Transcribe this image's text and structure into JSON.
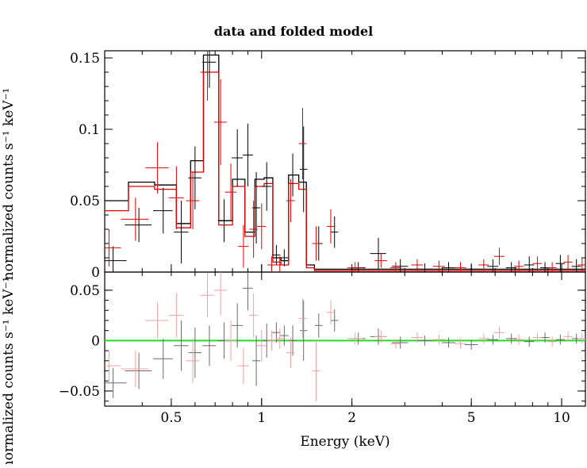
{
  "chart_data": [
    {
      "type": "scatter",
      "title": "data and folded model",
      "xlabel": "",
      "ylabel": "normalized counts s⁻¹ keV⁻¹",
      "x_scale": "log",
      "xlim": [
        0.3,
        12
      ],
      "ylim": [
        0,
        0.155
      ],
      "yticks": [
        "0",
        "0.05",
        "0.1",
        "0.15"
      ],
      "series": [
        {
          "color": "#000000",
          "points": [
            {
              "x": 0.32,
              "y": 0.008,
              "xe": 0.035,
              "ye": 0.01
            },
            {
              "x": 0.39,
              "y": 0.033,
              "xe": 0.04,
              "ye": 0.012
            },
            {
              "x": 0.47,
              "y": 0.043,
              "xe": 0.035,
              "ye": 0.016
            },
            {
              "x": 0.54,
              "y": 0.028,
              "xe": 0.03,
              "ye": 0.022
            },
            {
              "x": 0.6,
              "y": 0.066,
              "xe": 0.03,
              "ye": 0.022
            },
            {
              "x": 0.67,
              "y": 0.147,
              "xe": 0.035,
              "ye": 0.018
            },
            {
              "x": 0.75,
              "y": 0.036,
              "xe": 0.035,
              "ye": 0.015
            },
            {
              "x": 0.83,
              "y": 0.08,
              "xe": 0.035,
              "ye": 0.02
            },
            {
              "x": 0.9,
              "y": 0.082,
              "xe": 0.035,
              "ye": 0.022
            },
            {
              "x": 0.96,
              "y": 0.045,
              "xe": 0.03,
              "ye": 0.025
            },
            {
              "x": 1.04,
              "y": 0.06,
              "xe": 0.04,
              "ye": 0.017
            },
            {
              "x": 1.12,
              "y": 0.012,
              "xe": 0.035,
              "ye": 0.007
            },
            {
              "x": 1.19,
              "y": 0.01,
              "xe": 0.04,
              "ye": 0.006
            },
            {
              "x": 1.27,
              "y": 0.068,
              "xe": 0.04,
              "ye": 0.015
            },
            {
              "x": 1.38,
              "y": 0.072,
              "xe": 0.04,
              "ye": 0.03
            },
            {
              "x": 1.55,
              "y": 0.02,
              "xe": 0.045,
              "ye": 0.012
            },
            {
              "x": 1.75,
              "y": 0.028,
              "xe": 0.05,
              "ye": 0.011
            },
            {
              "x": 2.1,
              "y": 0.003,
              "xe": 0.12,
              "ye": 0.004
            },
            {
              "x": 2.45,
              "y": 0.013,
              "xe": 0.15,
              "ye": 0.011
            },
            {
              "x": 2.9,
              "y": 0.004,
              "xe": 0.18,
              "ye": 0.005
            },
            {
              "x": 3.5,
              "y": 0.002,
              "xe": 0.2,
              "ye": 0.004
            },
            {
              "x": 4.2,
              "y": 0.003,
              "xe": 0.22,
              "ye": 0.004
            },
            {
              "x": 5.0,
              "y": 0.002,
              "xe": 0.25,
              "ye": 0.004
            },
            {
              "x": 5.9,
              "y": 0.004,
              "xe": 0.25,
              "ye": 0.005
            },
            {
              "x": 6.8,
              "y": 0.003,
              "xe": 0.28,
              "ye": 0.004
            },
            {
              "x": 7.8,
              "y": 0.005,
              "xe": 0.3,
              "ye": 0.006
            },
            {
              "x": 8.8,
              "y": 0.003,
              "xe": 0.32,
              "ye": 0.004
            },
            {
              "x": 9.9,
              "y": 0.006,
              "xe": 0.35,
              "ye": 0.006
            },
            {
              "x": 11.2,
              "y": 0.004,
              "xe": 0.4,
              "ye": 0.005
            }
          ],
          "model": [
            [
              0.3,
              0.05
            ],
            [
              0.36,
              0.063
            ],
            [
              0.44,
              0.061
            ],
            [
              0.52,
              0.034
            ],
            [
              0.58,
              0.078
            ],
            [
              0.64,
              0.152
            ],
            [
              0.72,
              0.036
            ],
            [
              0.8,
              0.065
            ],
            [
              0.88,
              0.028
            ],
            [
              0.95,
              0.065
            ],
            [
              1.02,
              0.066
            ],
            [
              1.09,
              0.01
            ],
            [
              1.16,
              0.008
            ],
            [
              1.23,
              0.068
            ],
            [
              1.33,
              0.063
            ],
            [
              1.41,
              0.005
            ],
            [
              1.5,
              0.002
            ],
            [
              12,
              0.002
            ]
          ]
        },
        {
          "color": "#e00000",
          "points": [
            {
              "x": 0.31,
              "y": 0.017,
              "xe": 0.03,
              "ye": 0.013
            },
            {
              "x": 0.38,
              "y": 0.037,
              "xe": 0.04,
              "ye": 0.015
            },
            {
              "x": 0.45,
              "y": 0.073,
              "xe": 0.04,
              "ye": 0.018
            },
            {
              "x": 0.52,
              "y": 0.052,
              "xe": 0.03,
              "ye": 0.022
            },
            {
              "x": 0.59,
              "y": 0.05,
              "xe": 0.03,
              "ye": 0.02
            },
            {
              "x": 0.66,
              "y": 0.14,
              "xe": 0.035,
              "ye": 0.02
            },
            {
              "x": 0.73,
              "y": 0.105,
              "xe": 0.035,
              "ye": 0.03
            },
            {
              "x": 0.79,
              "y": 0.056,
              "xe": 0.035,
              "ye": 0.02
            },
            {
              "x": 0.87,
              "y": 0.018,
              "xe": 0.035,
              "ye": 0.015
            },
            {
              "x": 0.94,
              "y": 0.03,
              "xe": 0.03,
              "ye": 0.02
            },
            {
              "x": 1.0,
              "y": 0.032,
              "xe": 0.035,
              "ye": 0.016
            },
            {
              "x": 1.08,
              "y": 0.005,
              "xe": 0.035,
              "ye": 0.006
            },
            {
              "x": 1.15,
              "y": 0.005,
              "xe": 0.035,
              "ye": 0.006
            },
            {
              "x": 1.25,
              "y": 0.05,
              "xe": 0.04,
              "ye": 0.015
            },
            {
              "x": 1.37,
              "y": 0.09,
              "xe": 0.04,
              "ye": 0.025
            },
            {
              "x": 1.52,
              "y": 0.02,
              "xe": 0.045,
              "ye": 0.012
            },
            {
              "x": 1.7,
              "y": 0.032,
              "xe": 0.05,
              "ye": 0.012
            },
            {
              "x": 2.05,
              "y": 0.003,
              "xe": 0.12,
              "ye": 0.004
            },
            {
              "x": 2.5,
              "y": 0.008,
              "xe": 0.12,
              "ye": 0.005
            },
            {
              "x": 2.8,
              "y": 0.003,
              "xe": 0.12,
              "ye": 0.004
            },
            {
              "x": 3.3,
              "y": 0.005,
              "xe": 0.15,
              "ye": 0.004
            },
            {
              "x": 3.9,
              "y": 0.004,
              "xe": 0.18,
              "ye": 0.004
            },
            {
              "x": 4.6,
              "y": 0.003,
              "xe": 0.2,
              "ye": 0.004
            },
            {
              "x": 5.5,
              "y": 0.005,
              "xe": 0.22,
              "ye": 0.004
            },
            {
              "x": 6.2,
              "y": 0.011,
              "xe": 0.25,
              "ye": 0.006
            },
            {
              "x": 7.2,
              "y": 0.004,
              "xe": 0.28,
              "ye": 0.004
            },
            {
              "x": 8.3,
              "y": 0.006,
              "xe": 0.3,
              "ye": 0.005
            },
            {
              "x": 9.3,
              "y": 0.003,
              "xe": 0.32,
              "ye": 0.004
            },
            {
              "x": 10.5,
              "y": 0.007,
              "xe": 0.35,
              "ye": 0.005
            },
            {
              "x": 11.7,
              "y": 0.005,
              "xe": 0.4,
              "ye": 0.005
            }
          ],
          "model": [
            [
              0.3,
              0.043
            ],
            [
              0.36,
              0.06
            ],
            [
              0.44,
              0.058
            ],
            [
              0.52,
              0.031
            ],
            [
              0.58,
              0.07
            ],
            [
              0.64,
              0.14
            ],
            [
              0.72,
              0.033
            ],
            [
              0.8,
              0.06
            ],
            [
              0.88,
              0.025
            ],
            [
              0.95,
              0.06
            ],
            [
              1.02,
              0.062
            ],
            [
              1.09,
              0.007
            ],
            [
              1.16,
              0.005
            ],
            [
              1.23,
              0.062
            ],
            [
              1.33,
              0.058
            ],
            [
              1.41,
              0.003
            ],
            [
              1.5,
              0.001
            ],
            [
              12,
              0.001
            ]
          ]
        }
      ]
    },
    {
      "type": "scatter",
      "title": "",
      "xlabel": "Energy (keV)",
      "ylabel": "normalized counts s⁻¹ keV⁻¹",
      "x_scale": "log",
      "xlim": [
        0.3,
        12
      ],
      "ylim": [
        -0.065,
        0.068
      ],
      "xticks": [
        "0.5",
        "1",
        "2",
        "5",
        "10"
      ],
      "yticks": [
        "−0.05",
        "0",
        "0.05"
      ],
      "zero_line_color": "#22dd22",
      "series": [
        {
          "color": "#6a6a6a",
          "points": [
            {
              "x": 0.32,
              "y": -0.042,
              "xe": 0.035,
              "ye": 0.015
            },
            {
              "x": 0.39,
              "y": -0.03,
              "xe": 0.04,
              "ye": 0.018
            },
            {
              "x": 0.47,
              "y": -0.018,
              "xe": 0.035,
              "ye": 0.02
            },
            {
              "x": 0.54,
              "y": -0.005,
              "xe": 0.03,
              "ye": 0.025
            },
            {
              "x": 0.6,
              "y": -0.012,
              "xe": 0.03,
              "ye": 0.025
            },
            {
              "x": 0.67,
              "y": -0.005,
              "xe": 0.035,
              "ye": 0.02
            },
            {
              "x": 0.75,
              "y": 0.0,
              "xe": 0.035,
              "ye": 0.018
            },
            {
              "x": 0.83,
              "y": 0.015,
              "xe": 0.035,
              "ye": 0.022
            },
            {
              "x": 0.9,
              "y": 0.052,
              "xe": 0.035,
              "ye": 0.022
            },
            {
              "x": 0.96,
              "y": -0.02,
              "xe": 0.03,
              "ye": 0.025
            },
            {
              "x": 1.04,
              "y": 0.0,
              "xe": 0.04,
              "ye": 0.017
            },
            {
              "x": 1.12,
              "y": 0.008,
              "xe": 0.035,
              "ye": 0.01
            },
            {
              "x": 1.19,
              "y": 0.005,
              "xe": 0.04,
              "ye": 0.01
            },
            {
              "x": 1.27,
              "y": 0.0,
              "xe": 0.04,
              "ye": 0.015
            },
            {
              "x": 1.38,
              "y": 0.01,
              "xe": 0.04,
              "ye": 0.03
            },
            {
              "x": 1.55,
              "y": 0.015,
              "xe": 0.045,
              "ye": 0.012
            },
            {
              "x": 1.75,
              "y": 0.02,
              "xe": 0.05,
              "ye": 0.011
            },
            {
              "x": 2.1,
              "y": 0.002,
              "xe": 0.12,
              "ye": 0.006
            },
            {
              "x": 2.45,
              "y": 0.004,
              "xe": 0.15,
              "ye": 0.008
            },
            {
              "x": 2.9,
              "y": -0.002,
              "xe": 0.18,
              "ye": 0.006
            },
            {
              "x": 3.5,
              "y": 0.0,
              "xe": 0.2,
              "ye": 0.005
            },
            {
              "x": 4.2,
              "y": -0.002,
              "xe": 0.22,
              "ye": 0.005
            },
            {
              "x": 5.0,
              "y": -0.004,
              "xe": 0.25,
              "ye": 0.005
            },
            {
              "x": 5.9,
              "y": 0.001,
              "xe": 0.25,
              "ye": 0.005
            },
            {
              "x": 6.8,
              "y": 0.002,
              "xe": 0.28,
              "ye": 0.005
            },
            {
              "x": 7.8,
              "y": -0.001,
              "xe": 0.3,
              "ye": 0.005
            },
            {
              "x": 8.8,
              "y": 0.003,
              "xe": 0.32,
              "ye": 0.005
            },
            {
              "x": 9.9,
              "y": 0.001,
              "xe": 0.35,
              "ye": 0.005
            },
            {
              "x": 11.2,
              "y": 0.002,
              "xe": 0.4,
              "ye": 0.005
            }
          ]
        },
        {
          "color": "#f0a0a0",
          "points": [
            {
              "x": 0.31,
              "y": -0.025,
              "xe": 0.03,
              "ye": 0.015
            },
            {
              "x": 0.38,
              "y": -0.028,
              "xe": 0.04,
              "ye": 0.018
            },
            {
              "x": 0.45,
              "y": 0.02,
              "xe": 0.04,
              "ye": 0.018
            },
            {
              "x": 0.52,
              "y": 0.025,
              "xe": 0.03,
              "ye": 0.022
            },
            {
              "x": 0.59,
              "y": -0.02,
              "xe": 0.03,
              "ye": 0.022
            },
            {
              "x": 0.66,
              "y": 0.045,
              "xe": 0.035,
              "ye": 0.022
            },
            {
              "x": 0.73,
              "y": 0.05,
              "xe": 0.035,
              "ye": 0.025
            },
            {
              "x": 0.79,
              "y": 0.0,
              "xe": 0.035,
              "ye": 0.02
            },
            {
              "x": 0.87,
              "y": -0.025,
              "xe": 0.035,
              "ye": 0.018
            },
            {
              "x": 0.94,
              "y": 0.025,
              "xe": 0.03,
              "ye": 0.022
            },
            {
              "x": 1.0,
              "y": -0.005,
              "xe": 0.035,
              "ye": 0.016
            },
            {
              "x": 1.08,
              "y": 0.0,
              "xe": 0.035,
              "ye": 0.01
            },
            {
              "x": 1.15,
              "y": 0.002,
              "xe": 0.035,
              "ye": 0.01
            },
            {
              "x": 1.25,
              "y": -0.012,
              "xe": 0.04,
              "ye": 0.015
            },
            {
              "x": 1.37,
              "y": 0.022,
              "xe": 0.04,
              "ye": 0.02
            },
            {
              "x": 1.52,
              "y": -0.03,
              "xe": 0.045,
              "ye": 0.03
            },
            {
              "x": 1.7,
              "y": 0.028,
              "xe": 0.05,
              "ye": 0.012
            },
            {
              "x": 2.05,
              "y": 0.002,
              "xe": 0.12,
              "ye": 0.006
            },
            {
              "x": 2.5,
              "y": 0.004,
              "xe": 0.12,
              "ye": 0.006
            },
            {
              "x": 2.8,
              "y": -0.003,
              "xe": 0.12,
              "ye": 0.005
            },
            {
              "x": 3.3,
              "y": 0.003,
              "xe": 0.15,
              "ye": 0.005
            },
            {
              "x": 3.9,
              "y": 0.001,
              "xe": 0.18,
              "ye": 0.005
            },
            {
              "x": 4.6,
              "y": -0.003,
              "xe": 0.2,
              "ye": 0.005
            },
            {
              "x": 5.5,
              "y": 0.002,
              "xe": 0.22,
              "ye": 0.005
            },
            {
              "x": 6.2,
              "y": 0.008,
              "xe": 0.25,
              "ye": 0.006
            },
            {
              "x": 7.2,
              "y": 0.001,
              "xe": 0.28,
              "ye": 0.005
            },
            {
              "x": 8.3,
              "y": 0.003,
              "xe": 0.3,
              "ye": 0.005
            },
            {
              "x": 9.3,
              "y": -0.001,
              "xe": 0.32,
              "ye": 0.005
            },
            {
              "x": 10.5,
              "y": 0.004,
              "xe": 0.35,
              "ye": 0.005
            },
            {
              "x": 11.7,
              "y": 0.002,
              "xe": 0.4,
              "ye": 0.005
            }
          ]
        }
      ]
    }
  ]
}
